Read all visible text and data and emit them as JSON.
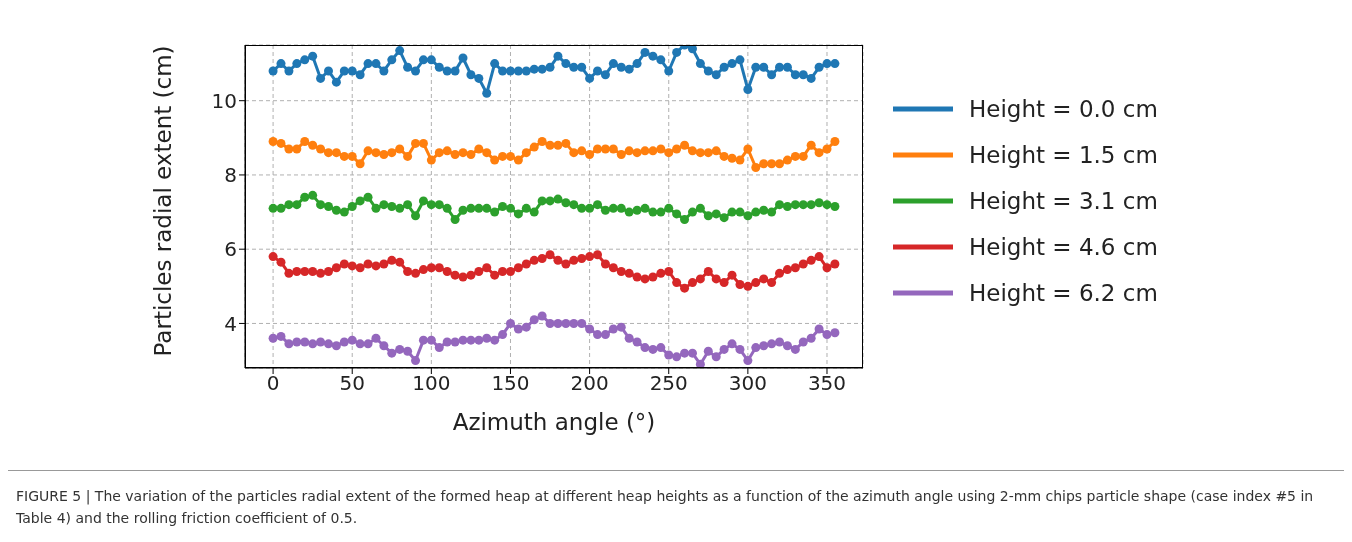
{
  "chart_data": {
    "type": "line",
    "xlabel": "Azimuth angle (°)",
    "ylabel": "Particles radial extent (cm)",
    "x": [
      0,
      5,
      10,
      15,
      20,
      25,
      30,
      35,
      40,
      45,
      50,
      55,
      60,
      65,
      70,
      75,
      80,
      85,
      90,
      95,
      100,
      105,
      110,
      115,
      120,
      125,
      130,
      135,
      140,
      145,
      150,
      155,
      160,
      165,
      170,
      175,
      180,
      185,
      190,
      195,
      200,
      205,
      210,
      215,
      220,
      225,
      230,
      235,
      240,
      245,
      250,
      255,
      260,
      265,
      270,
      275,
      280,
      285,
      290,
      295,
      300,
      305,
      310,
      315,
      320,
      325,
      330,
      335,
      340,
      345,
      350,
      355
    ],
    "series": [
      {
        "name": "Height = 0.0 cm",
        "color": "#1f77b4",
        "values": [
          10.8,
          11.0,
          10.8,
          11.0,
          11.1,
          11.2,
          10.6,
          10.8,
          10.5,
          10.8,
          10.8,
          10.7,
          11.0,
          11.0,
          10.8,
          11.1,
          11.35,
          10.9,
          10.8,
          11.1,
          11.1,
          10.9,
          10.8,
          10.8,
          11.15,
          10.7,
          10.6,
          10.2,
          11.0,
          10.8,
          10.8,
          10.8,
          10.8,
          10.85,
          10.85,
          10.9,
          11.2,
          11.0,
          10.9,
          10.9,
          10.6,
          10.8,
          10.7,
          11.0,
          10.9,
          10.85,
          11.0,
          11.3,
          11.2,
          11.1,
          10.8,
          11.3,
          11.5,
          11.4,
          11.0,
          10.8,
          10.7,
          10.9,
          11.0,
          11.1,
          10.3,
          10.9,
          10.9,
          10.7,
          10.9,
          10.9,
          10.7,
          10.7,
          10.6,
          10.9,
          11.0,
          11.0
        ]
      },
      {
        "name": "Height = 1.5 cm",
        "color": "#ff7f0e",
        "values": [
          8.9,
          8.85,
          8.7,
          8.7,
          8.9,
          8.8,
          8.7,
          8.6,
          8.6,
          8.5,
          8.5,
          8.3,
          8.65,
          8.6,
          8.55,
          8.6,
          8.7,
          8.5,
          8.85,
          8.85,
          8.4,
          8.6,
          8.65,
          8.55,
          8.6,
          8.55,
          8.7,
          8.6,
          8.4,
          8.5,
          8.5,
          8.4,
          8.6,
          8.75,
          8.9,
          8.8,
          8.8,
          8.85,
          8.6,
          8.65,
          8.55,
          8.7,
          8.7,
          8.7,
          8.55,
          8.65,
          8.6,
          8.65,
          8.65,
          8.7,
          8.6,
          8.7,
          8.8,
          8.65,
          8.6,
          8.6,
          8.65,
          8.5,
          8.45,
          8.4,
          8.7,
          8.2,
          8.3,
          8.3,
          8.3,
          8.4,
          8.5,
          8.5,
          8.8,
          8.6,
          8.7,
          8.9
        ]
      },
      {
        "name": "Height = 3.1 cm",
        "color": "#2ca02c",
        "values": [
          7.1,
          7.1,
          7.2,
          7.2,
          7.4,
          7.45,
          7.2,
          7.15,
          7.05,
          7.0,
          7.15,
          7.3,
          7.4,
          7.1,
          7.2,
          7.15,
          7.1,
          7.2,
          6.9,
          7.3,
          7.2,
          7.2,
          7.1,
          6.8,
          7.05,
          7.1,
          7.1,
          7.1,
          7.0,
          7.15,
          7.1,
          6.95,
          7.1,
          7.0,
          7.3,
          7.3,
          7.35,
          7.25,
          7.2,
          7.1,
          7.1,
          7.2,
          7.05,
          7.1,
          7.1,
          7.0,
          7.05,
          7.1,
          7.0,
          7.0,
          7.1,
          6.95,
          6.8,
          7.0,
          7.1,
          6.9,
          6.95,
          6.85,
          7.0,
          7.0,
          6.9,
          7.0,
          7.05,
          7.0,
          7.2,
          7.15,
          7.2,
          7.2,
          7.2,
          7.25,
          7.2,
          7.15
        ]
      },
      {
        "name": "Height = 4.6 cm",
        "color": "#d62728",
        "values": [
          5.8,
          5.65,
          5.35,
          5.4,
          5.4,
          5.4,
          5.35,
          5.4,
          5.5,
          5.6,
          5.55,
          5.5,
          5.6,
          5.55,
          5.6,
          5.7,
          5.65,
          5.4,
          5.35,
          5.45,
          5.5,
          5.5,
          5.4,
          5.3,
          5.25,
          5.3,
          5.4,
          5.5,
          5.3,
          5.4,
          5.4,
          5.5,
          5.6,
          5.7,
          5.75,
          5.85,
          5.7,
          5.6,
          5.7,
          5.75,
          5.8,
          5.85,
          5.6,
          5.5,
          5.4,
          5.35,
          5.25,
          5.2,
          5.25,
          5.35,
          5.4,
          5.1,
          4.95,
          5.1,
          5.2,
          5.4,
          5.2,
          5.1,
          5.3,
          5.05,
          5.0,
          5.1,
          5.2,
          5.1,
          5.35,
          5.45,
          5.5,
          5.6,
          5.7,
          5.8,
          5.5,
          5.6
        ]
      },
      {
        "name": "Height = 6.2 cm",
        "color": "#9467bd",
        "values": [
          3.6,
          3.65,
          3.45,
          3.5,
          3.5,
          3.45,
          3.5,
          3.45,
          3.4,
          3.5,
          3.55,
          3.45,
          3.45,
          3.6,
          3.4,
          3.2,
          3.3,
          3.25,
          3.0,
          3.55,
          3.55,
          3.35,
          3.5,
          3.5,
          3.55,
          3.55,
          3.55,
          3.6,
          3.55,
          3.7,
          4.0,
          3.85,
          3.9,
          4.1,
          4.2,
          4.0,
          4.0,
          4.0,
          4.0,
          4.0,
          3.85,
          3.7,
          3.7,
          3.85,
          3.9,
          3.6,
          3.5,
          3.35,
          3.3,
          3.35,
          3.15,
          3.1,
          3.2,
          3.2,
          2.9,
          3.25,
          3.1,
          3.3,
          3.45,
          3.3,
          3.0,
          3.35,
          3.4,
          3.45,
          3.5,
          3.4,
          3.3,
          3.5,
          3.6,
          3.85,
          3.7,
          3.75
        ]
      }
    ],
    "xlim": [
      -17.75,
      372.75
    ],
    "xticks": [
      0,
      50,
      100,
      150,
      200,
      250,
      300,
      350
    ],
    "ylim": [
      2.8,
      11.5
    ],
    "yticks": [
      4,
      6,
      8,
      10
    ],
    "grid": true,
    "legend": "right",
    "marker": "circle",
    "line_style": "solid",
    "annotations": [
      "FIGURE 5 | The variation of the particles radial extent of the formed heap at different heap heights as a function of the azimuth angle using 2-mm chips particle shape (case index #5 in Table 4) and the rolling friction coefficient of 0.5."
    ]
  }
}
